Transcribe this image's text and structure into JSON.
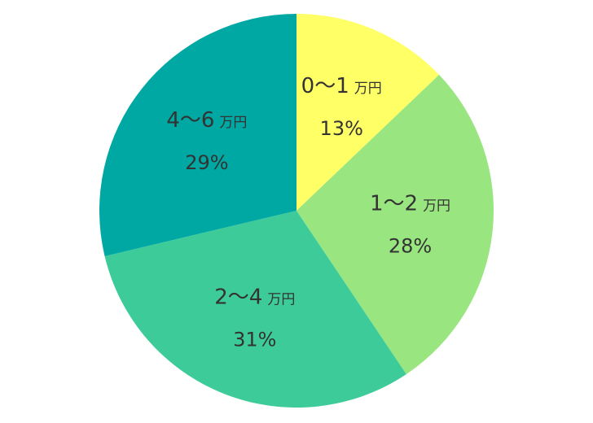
{
  "chart_data": {
    "type": "pie",
    "start_angle_deg": 0,
    "direction": "clockwise",
    "slices": [
      {
        "label": "0〜1",
        "unit": "万円",
        "value": 13,
        "value_label": "13%",
        "color": "#FFFF66"
      },
      {
        "label": "1〜2",
        "unit": "万円",
        "value": 28,
        "value_label": "28%",
        "color": "#99E680"
      },
      {
        "label": "2〜4",
        "unit": "万円",
        "value": 31,
        "value_label": "31%",
        "color": "#3DCC99"
      },
      {
        "label": "4〜6",
        "unit": "万円",
        "value": 29,
        "value_label": "29%",
        "color": "#00A8A3"
      }
    ]
  }
}
